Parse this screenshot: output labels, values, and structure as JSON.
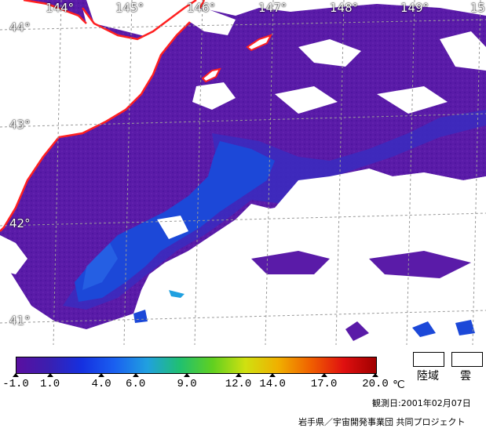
{
  "map": {
    "longitude_labels": [
      "144°",
      "145°",
      "146°",
      "147°",
      "148°",
      "149°",
      "15"
    ],
    "latitude_labels": [
      "44°",
      "43°",
      "42°",
      "41°"
    ]
  },
  "legend": {
    "color_stops": [
      "#5a0fa0",
      "#3a1fb0",
      "#1530e0",
      "#1a60f0",
      "#20a0e0",
      "#20c070",
      "#60d020",
      "#d0e010",
      "#f0b000",
      "#f06000",
      "#e01010",
      "#a00000"
    ],
    "ticks": [
      "-1.0",
      "1.0",
      "4.0",
      "6.0",
      "9.0",
      "12.0",
      "14.0",
      "17.0",
      "20.0"
    ],
    "tick_values": [
      -1.0,
      1.0,
      4.0,
      6.0,
      9.0,
      12.0,
      14.0,
      17.0,
      20.0
    ],
    "range": [
      -1.0,
      20.0
    ],
    "unit": "℃",
    "land_label": "陸域",
    "cloud_label": "雲"
  },
  "footer": {
    "observation_date": "観測日:2001年02月07日",
    "credit": "岩手県／宇宙開発事業団 共同プロジェクト"
  },
  "colors": {
    "sea_cold": "#5a1ba8",
    "sea_cool": "#3a2cc0",
    "sea_current": "#1c48d8",
    "coastline": "#ff2020",
    "land_cloud": "#ffffff"
  }
}
